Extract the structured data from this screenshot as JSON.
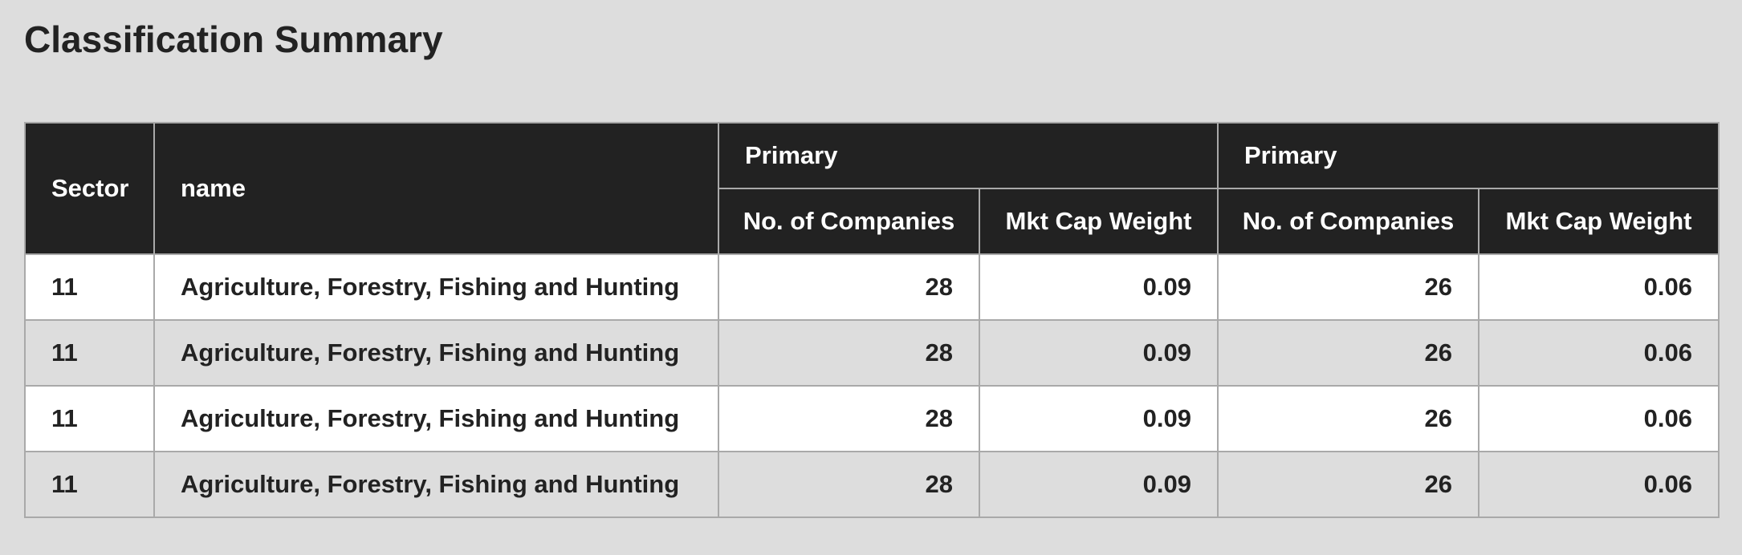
{
  "page": {
    "title": "Classification Summary"
  },
  "table": {
    "headers": {
      "sector": "Sector",
      "name": "name",
      "group1": "Primary",
      "group2": "Primary",
      "sub1_companies": "No. of Companies",
      "sub1_weight": "Mkt Cap Weight",
      "sub2_companies": "No. of Companies",
      "sub2_weight": "Mkt Cap Weight"
    },
    "rows": [
      {
        "sector": "11",
        "name": "Agriculture, Forestry, Fishing and Hunting",
        "p1_companies": "28",
        "p1_weight": "0.09",
        "p2_companies": "26",
        "p2_weight": "0.06"
      },
      {
        "sector": "11",
        "name": "Agriculture, Forestry, Fishing and Hunting",
        "p1_companies": "28",
        "p1_weight": "0.09",
        "p2_companies": "26",
        "p2_weight": "0.06"
      },
      {
        "sector": "11",
        "name": "Agriculture, Forestry, Fishing and Hunting",
        "p1_companies": "28",
        "p1_weight": "0.09",
        "p2_companies": "26",
        "p2_weight": "0.06"
      },
      {
        "sector": "11",
        "name": "Agriculture, Forestry, Fishing and Hunting",
        "p1_companies": "28",
        "p1_weight": "0.09",
        "p2_companies": "26",
        "p2_weight": "0.06"
      }
    ]
  },
  "colors": {
    "page_background": "#dddddd",
    "header_background": "#222222",
    "header_text": "#ffffff",
    "row_odd": "#ffffff",
    "row_even": "#dddddd",
    "border": "#a9a9a9"
  }
}
